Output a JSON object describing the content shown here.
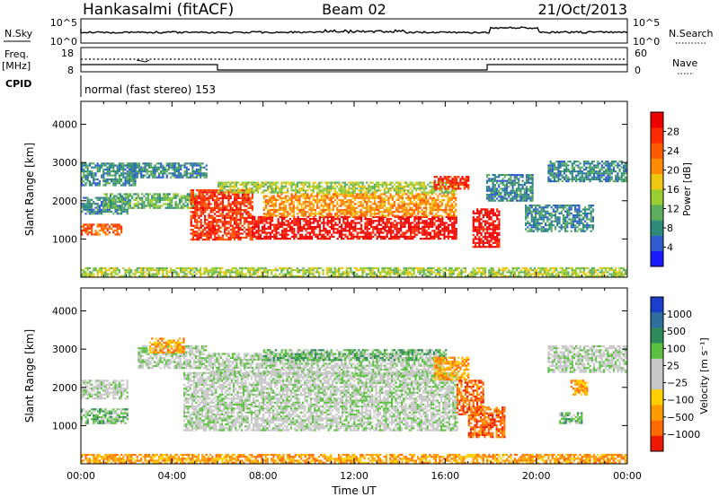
{
  "header": {
    "station": "Hankasalmi (fitACF)",
    "beam": "Beam 02",
    "date": "21/Oct/2013"
  },
  "summary_panels": {
    "nsky_label": "N.Sky",
    "nsearch_label": "N.Search",
    "noise_ticks": [
      "10^5",
      "10^0"
    ],
    "freq_label": "Freq.",
    "freq_unit": "[MHz]",
    "freq_ticks": [
      "18",
      "8"
    ],
    "nave_label": "Nave",
    "nave_ticks": [
      "60",
      "0"
    ],
    "cpid_label": "CPID",
    "cpid_text": "normal (fast stereo) 153"
  },
  "chart_data": [
    {
      "type": "heatmap",
      "name": "power",
      "xlabel": "",
      "ylabel": "Slant Range [km]",
      "x_ticks": [
        "00:00",
        "04:00",
        "08:00",
        "12:00",
        "16:00",
        "20:00",
        "00:00"
      ],
      "xlim_hours": [
        0,
        24
      ],
      "ylim": [
        0,
        4600
      ],
      "y_ticks": [
        "1000",
        "2000",
        "3000",
        "4000"
      ],
      "colorbar_label": "Power [dB]",
      "colorbar_ticks": [
        "4",
        "8",
        "12",
        "16",
        "20",
        "24",
        "28"
      ],
      "colorbar_colors": [
        "#1a1aff",
        "#2e5ccc",
        "#2e8a7a",
        "#5cae5c",
        "#9acd32",
        "#f0c814",
        "#ff8c00",
        "#ff5a00",
        "#ff2a00",
        "#ee0000"
      ],
      "regions": [
        {
          "t0": 0.0,
          "t1": 2.4,
          "r0": 2400,
          "r1": 3000,
          "level": 2
        },
        {
          "t0": 0.0,
          "t1": 1.8,
          "r0": 1100,
          "r1": 1400,
          "level": 7
        },
        {
          "t0": 0.0,
          "t1": 2.0,
          "r0": 1650,
          "r1": 2100,
          "level": 2
        },
        {
          "t0": 1.0,
          "t1": 5.0,
          "r0": 1800,
          "r1": 2200,
          "level": 3
        },
        {
          "t0": 2.0,
          "t1": 5.5,
          "r0": 2600,
          "r1": 3000,
          "level": 2
        },
        {
          "t0": 4.8,
          "t1": 7.5,
          "r0": 1000,
          "r1": 2300,
          "level": 8
        },
        {
          "t0": 7.5,
          "t1": 16.5,
          "r0": 1000,
          "r1": 1600,
          "level": 9
        },
        {
          "t0": 8.0,
          "t1": 16.5,
          "r0": 1600,
          "r1": 2200,
          "level": 6
        },
        {
          "t0": 6.0,
          "t1": 16.5,
          "r0": 2200,
          "r1": 2500,
          "level": 4
        },
        {
          "t0": 15.5,
          "t1": 17.0,
          "r0": 2300,
          "r1": 2650,
          "level": 8
        },
        {
          "t0": 17.2,
          "t1": 18.4,
          "r0": 800,
          "r1": 1800,
          "level": 9
        },
        {
          "t0": 17.8,
          "t1": 19.8,
          "r0": 2000,
          "r1": 2700,
          "level": 2
        },
        {
          "t0": 19.5,
          "t1": 22.5,
          "r0": 1200,
          "r1": 1900,
          "level": 2
        },
        {
          "t0": 20.5,
          "t1": 24.0,
          "r0": 2500,
          "r1": 3050,
          "level": 2
        },
        {
          "t0": 0.0,
          "t1": 24.0,
          "r0": 0,
          "r1": 260,
          "level": 4
        }
      ]
    },
    {
      "type": "heatmap",
      "name": "velocity",
      "xlabel": "Time UT",
      "ylabel": "Slant Range [km]",
      "x_ticks": [
        "00:00",
        "04:00",
        "08:00",
        "12:00",
        "16:00",
        "20:00",
        "00:00"
      ],
      "xlim_hours": [
        0,
        24
      ],
      "ylim": [
        0,
        4600
      ],
      "y_ticks": [
        "1000",
        "2000",
        "3000",
        "4000"
      ],
      "colorbar_label": "Velocity [m s⁻¹]",
      "colorbar_ticks": [
        "1000",
        "500",
        "100",
        "25",
        "−25",
        "−100",
        "−500",
        "−1000"
      ],
      "colorbar_colors": [
        "#1c3ecc",
        "#2e6fa0",
        "#2e8a5a",
        "#5cc040",
        "#c8c8c8",
        "#c8c8c8",
        "#ffd000",
        "#ff9a00",
        "#ff6a00",
        "#ee1a00"
      ],
      "regions": [
        {
          "t0": 0.0,
          "t1": 2.0,
          "r0": 1050,
          "r1": 1450,
          "level": 3
        },
        {
          "t0": 0.0,
          "t1": 2.0,
          "r0": 1700,
          "r1": 2200,
          "level": 4
        },
        {
          "t0": 2.5,
          "t1": 5.5,
          "r0": 2500,
          "r1": 3100,
          "level": 4
        },
        {
          "t0": 3.0,
          "t1": 4.5,
          "r0": 2900,
          "r1": 3300,
          "level": 7
        },
        {
          "t0": 4.5,
          "t1": 16.5,
          "r0": 900,
          "r1": 2400,
          "level": 4
        },
        {
          "t0": 5.5,
          "t1": 16.0,
          "r0": 2300,
          "r1": 2900,
          "level": 4
        },
        {
          "t0": 8.0,
          "t1": 16.0,
          "r0": 2700,
          "r1": 3000,
          "level": 3
        },
        {
          "t0": 15.5,
          "t1": 17.0,
          "r0": 2200,
          "r1": 2800,
          "level": 7
        },
        {
          "t0": 16.5,
          "t1": 17.7,
          "r0": 1300,
          "r1": 2200,
          "level": 8
        },
        {
          "t0": 17.0,
          "t1": 18.6,
          "r0": 700,
          "r1": 1500,
          "level": 8
        },
        {
          "t0": 20.5,
          "t1": 24.0,
          "r0": 2400,
          "r1": 3100,
          "level": 4
        },
        {
          "t0": 21.0,
          "t1": 22.0,
          "r0": 1050,
          "r1": 1350,
          "level": 3
        },
        {
          "t0": 21.5,
          "t1": 22.2,
          "r0": 1800,
          "r1": 2200,
          "level": 7
        },
        {
          "t0": 0.0,
          "t1": 24.0,
          "r0": 0,
          "r1": 260,
          "level": 7
        }
      ]
    }
  ]
}
